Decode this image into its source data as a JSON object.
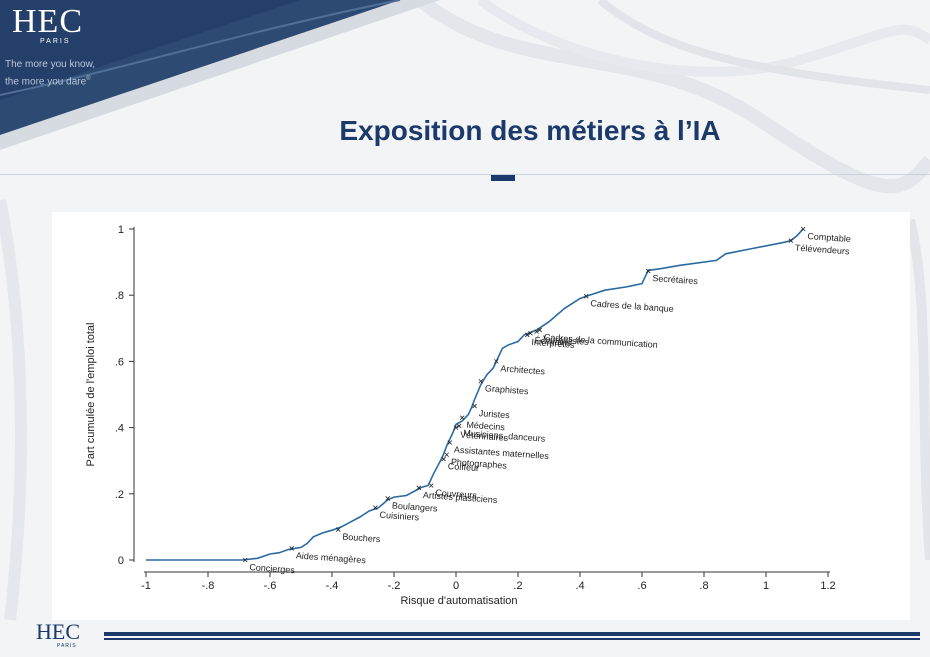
{
  "brand": {
    "logo": "HEC",
    "logo_sub": "PARIS",
    "tagline_1": "The more you know,",
    "tagline_2": "the more you dare",
    "tagline_mark": "®"
  },
  "slide": {
    "title": "Exposition des métiers à l’IA"
  },
  "colors": {
    "navy": "#1b3a6b",
    "curve": "#2b6aa0",
    "banner": "#2c4a72"
  },
  "chart_data": {
    "type": "line",
    "title": "",
    "xlabel": "Risque d'automatisation",
    "ylabel": "Part cumulée de l'emploi total",
    "xlim": [
      -1,
      1.2
    ],
    "ylim": [
      0,
      1
    ],
    "xticks": [
      -1,
      -0.8,
      -0.6,
      -0.4,
      -0.2,
      0,
      0.2,
      0.4,
      0.6,
      0.8,
      1,
      1.2
    ],
    "xtick_labels": [
      "-1",
      "-.8",
      "-.6",
      "-.4",
      "-.2",
      "0",
      ".2",
      ".4",
      ".6",
      ".8",
      "1",
      "1.2"
    ],
    "yticks": [
      0,
      0.2,
      0.4,
      0.6,
      0.8,
      1
    ],
    "ytick_labels": [
      "0",
      ".2",
      ".4",
      ".6",
      ".8",
      "1"
    ],
    "grid": false,
    "series": [
      {
        "x": [
          -1,
          -0.69,
          -0.64,
          -0.6,
          -0.57,
          -0.54,
          -0.5,
          -0.48,
          -0.46,
          -0.43,
          -0.4,
          -0.37,
          -0.34,
          -0.31,
          -0.28,
          -0.25,
          -0.22,
          -0.2,
          -0.16,
          -0.13,
          -0.11,
          -0.09,
          -0.07,
          -0.05,
          -0.04,
          -0.03,
          -0.02,
          -0.01,
          0,
          0.02,
          0.04,
          0.05,
          0.06,
          0.08,
          0.1,
          0.12,
          0.13,
          0.15,
          0.17,
          0.2,
          0.22,
          0.26,
          0.3,
          0.35,
          0.4,
          0.43,
          0.48,
          0.55,
          0.6,
          0.62,
          0.66,
          0.72,
          0.84,
          0.87,
          0.95,
          1.06,
          1.08,
          1.1,
          1.12
        ],
        "y": [
          0,
          0,
          0.005,
          0.018,
          0.022,
          0.032,
          0.038,
          0.05,
          0.07,
          0.082,
          0.09,
          0.1,
          0.115,
          0.13,
          0.148,
          0.158,
          0.182,
          0.19,
          0.195,
          0.21,
          0.22,
          0.225,
          0.265,
          0.3,
          0.32,
          0.345,
          0.365,
          0.385,
          0.41,
          0.42,
          0.44,
          0.46,
          0.485,
          0.53,
          0.56,
          0.58,
          0.6,
          0.64,
          0.65,
          0.66,
          0.68,
          0.695,
          0.72,
          0.76,
          0.79,
          0.8,
          0.815,
          0.825,
          0.835,
          0.875,
          0.88,
          0.89,
          0.905,
          0.925,
          0.94,
          0.96,
          0.965,
          0.98,
          1.0
        ]
      }
    ],
    "annotations": [
      {
        "label": "Concierges",
        "x": -0.68,
        "y": 0.0
      },
      {
        "label": "Aides ménagères",
        "x": -0.53,
        "y": 0.035
      },
      {
        "label": "Bouchers",
        "x": -0.38,
        "y": 0.092
      },
      {
        "label": "Cuisiniers",
        "x": -0.26,
        "y": 0.158
      },
      {
        "label": "Boulangers",
        "x": -0.22,
        "y": 0.186
      },
      {
        "label": "Artistes plasticiens",
        "x": -0.12,
        "y": 0.218
      },
      {
        "label": "Couvreurs",
        "x": -0.08,
        "y": 0.225
      },
      {
        "label": "Coiffeur",
        "x": -0.04,
        "y": 0.305
      },
      {
        "label": "Photographes",
        "x": -0.03,
        "y": 0.318
      },
      {
        "label": "Assistantes maternelles",
        "x": -0.02,
        "y": 0.355
      },
      {
        "label": "Vétérinaires",
        "x": 0.0,
        "y": 0.4
      },
      {
        "label": "Musiciens, danceurs",
        "x": 0.01,
        "y": 0.405
      },
      {
        "label": "Médecins",
        "x": 0.02,
        "y": 0.43
      },
      {
        "label": "Juristes",
        "x": 0.06,
        "y": 0.465
      },
      {
        "label": "Graphistes",
        "x": 0.08,
        "y": 0.54
      },
      {
        "label": "Architectes",
        "x": 0.13,
        "y": 0.6
      },
      {
        "label": "Interprètes",
        "x": 0.23,
        "y": 0.68
      },
      {
        "label": "Écrivains",
        "x": 0.24,
        "y": 0.685
      },
      {
        "label": "Journalistes",
        "x": 0.26,
        "y": 0.69
      },
      {
        "label": "Cadres de la communication",
        "x": 0.27,
        "y": 0.695
      },
      {
        "label": "Cadres de la banque",
        "x": 0.42,
        "y": 0.797
      },
      {
        "label": "Secrétaires",
        "x": 0.62,
        "y": 0.873
      },
      {
        "label": "Télévendeurs",
        "x": 1.08,
        "y": 0.965
      },
      {
        "label": "Comptable",
        "x": 1.12,
        "y": 1.0
      }
    ]
  }
}
